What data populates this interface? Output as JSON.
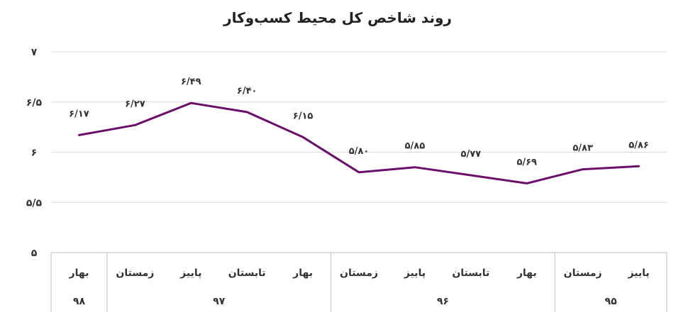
{
  "chart_data": {
    "type": "line",
    "title": "روند شاخص کل محیط کسب‌وکار",
    "ylim": [
      5,
      7
    ],
    "yticks": [
      {
        "value": 7,
        "label": "۷"
      },
      {
        "value": 6.5,
        "label": "۶/۵"
      },
      {
        "value": 6,
        "label": "۶"
      },
      {
        "value": 5.5,
        "label": "۵/۵"
      },
      {
        "value": 5,
        "label": "۵"
      }
    ],
    "grid": true,
    "line_color": "#6b0f6b",
    "categories": [
      "پاییز",
      "زمستان",
      "بهار",
      "تابستان",
      "پاییز",
      "زمستان",
      "بهار",
      "تابستان",
      "پاییز",
      "زمستان",
      "بهار"
    ],
    "groups": [
      {
        "label": "۹۵",
        "count": 2
      },
      {
        "label": "۹۶",
        "count": 4
      },
      {
        "label": "۹۷",
        "count": 4
      },
      {
        "label": "۹۸",
        "count": 1
      }
    ],
    "values": [
      5.86,
      5.83,
      5.69,
      5.77,
      5.85,
      5.8,
      6.15,
      6.4,
      6.49,
      6.27,
      6.17
    ],
    "data_labels": [
      "۵/۸۶",
      "۵/۸۳",
      "۵/۶۹",
      "۵/۷۷",
      "۵/۸۵",
      "۵/۸۰",
      "۶/۱۵",
      "۶/۴۰",
      "۶/۴۹",
      "۶/۲۷",
      "۶/۱۷"
    ]
  }
}
